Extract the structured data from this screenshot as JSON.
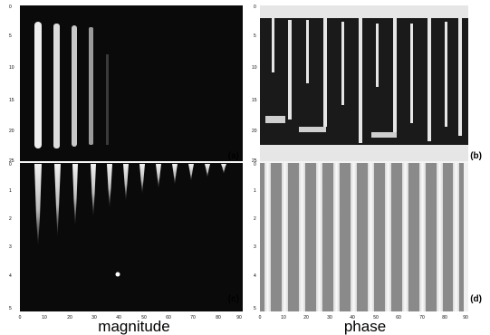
{
  "figure": {
    "panels": [
      {
        "id": "a",
        "label": "(a)",
        "kind": "magnitude",
        "y_ticks": [
          "0",
          "5",
          "10",
          "15",
          "20",
          "25"
        ],
        "x_ticks": []
      },
      {
        "id": "b",
        "label": "(b)",
        "kind": "phase",
        "y_ticks": [
          "0",
          "5",
          "10",
          "15",
          "20",
          "25"
        ],
        "x_ticks": []
      },
      {
        "id": "c",
        "label": "(c)",
        "kind": "magnitude",
        "y_ticks": [
          "0",
          "1",
          "2",
          "3",
          "4",
          "5"
        ],
        "x_ticks": [
          "0",
          "10",
          "20",
          "30",
          "40",
          "50",
          "60",
          "70",
          "80",
          "90"
        ]
      },
      {
        "id": "d",
        "label": "(d)",
        "kind": "phase",
        "y_ticks": [
          "0",
          "1",
          "2",
          "3",
          "4",
          "5"
        ],
        "x_ticks": [
          "0",
          "10",
          "20",
          "30",
          "40",
          "50",
          "60",
          "70",
          "80",
          "90"
        ]
      }
    ],
    "captions": {
      "left": "magnitude",
      "right": "phase"
    }
  },
  "colors": {
    "background": "#ffffff",
    "image_dark": "#0a0a0a",
    "stripe_bright": "#e8e8e8",
    "phase_mid": "#8a8a8a"
  }
}
